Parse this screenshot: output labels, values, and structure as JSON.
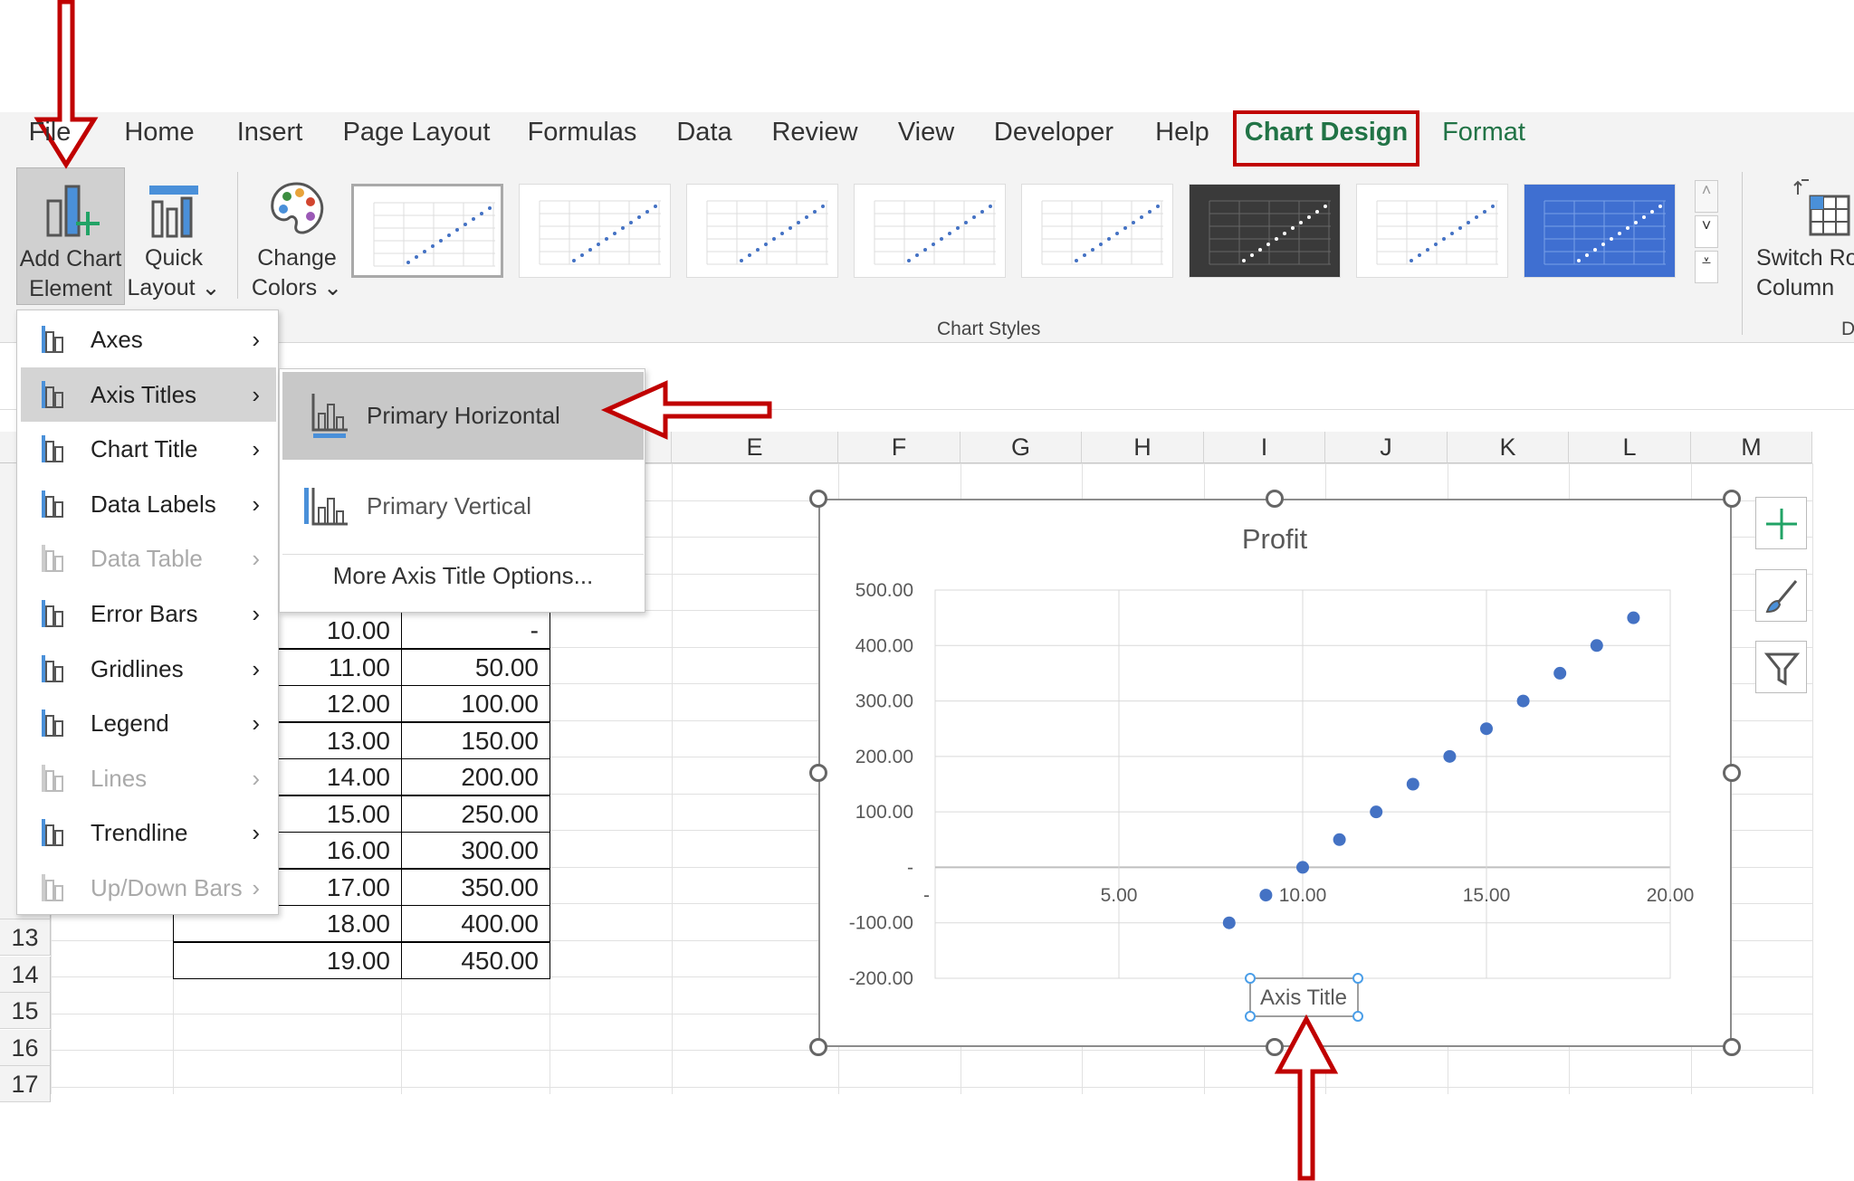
{
  "ribbon": {
    "tabs": [
      "File",
      "Home",
      "Insert",
      "Page Layout",
      "Formulas",
      "Data",
      "Review",
      "View",
      "Developer",
      "Help",
      "Chart Design",
      "Format"
    ],
    "active_tab": "Chart Design",
    "add_chart_element": {
      "line1": "Add Chart",
      "line2": "Element ⌄"
    },
    "quick_layout": {
      "line1": "Quick",
      "line2": "Layout ⌄"
    },
    "change_colors": {
      "line1": "Change",
      "line2": "Colors ⌄"
    },
    "chart_styles_label": "Chart Styles",
    "switch_row_col": {
      "line1": "Switch Ro",
      "line2": "Column"
    },
    "group_cut_label": "D"
  },
  "columns": [
    "E",
    "F",
    "G",
    "H",
    "I",
    "J",
    "K",
    "L",
    "M"
  ],
  "rows": [
    "13",
    "14",
    "15",
    "16",
    "17"
  ],
  "table": [
    [
      "10.00",
      "-"
    ],
    [
      "11.00",
      "50.00"
    ],
    [
      "12.00",
      "100.00"
    ],
    [
      "13.00",
      "150.00"
    ],
    [
      "14.00",
      "200.00"
    ],
    [
      "15.00",
      "250.00"
    ],
    [
      "16.00",
      "300.00"
    ],
    [
      "17.00",
      "350.00"
    ],
    [
      "18.00",
      "400.00"
    ],
    [
      "19.00",
      "450.00"
    ]
  ],
  "menu": {
    "items": [
      {
        "label": "Axes",
        "icon": "axes-icon",
        "enabled": true
      },
      {
        "label": "Axis Titles",
        "icon": "axis-titles-icon",
        "enabled": true,
        "highlighted": true
      },
      {
        "label": "Chart Title",
        "icon": "chart-title-icon",
        "enabled": true
      },
      {
        "label": "Data Labels",
        "icon": "data-labels-icon",
        "enabled": true
      },
      {
        "label": "Data Table",
        "icon": "data-table-icon",
        "enabled": false
      },
      {
        "label": "Error Bars",
        "icon": "error-bars-icon",
        "enabled": true
      },
      {
        "label": "Gridlines",
        "icon": "gridlines-icon",
        "enabled": true
      },
      {
        "label": "Legend",
        "icon": "legend-icon",
        "enabled": true
      },
      {
        "label": "Lines",
        "icon": "lines-icon",
        "enabled": false
      },
      {
        "label": "Trendline",
        "icon": "trendline-icon",
        "enabled": true
      },
      {
        "label": "Up/Down Bars",
        "icon": "updown-bars-icon",
        "enabled": false
      }
    ],
    "submenu": {
      "primary_horizontal": "Primary Horizontal",
      "primary_vertical": "Primary Vertical",
      "more_options": "More Axis Title Options..."
    }
  },
  "colors": {
    "accent": "#217346",
    "marker": "#4472c4",
    "annotation": "#c00000"
  },
  "chart_data": {
    "type": "scatter",
    "title": "Profit",
    "xlabel": "Axis Title",
    "ylabel": "",
    "x": [
      8,
      9,
      10,
      11,
      12,
      13,
      14,
      15,
      16,
      17,
      18,
      19
    ],
    "y": [
      -100,
      -50,
      0,
      50,
      100,
      150,
      200,
      250,
      300,
      350,
      400,
      450
    ],
    "xlim": [
      0,
      20
    ],
    "ylim": [
      -200,
      500
    ],
    "xticks": [
      "-",
      "5.00",
      "10.00",
      "15.00",
      "20.00"
    ],
    "yticks": [
      "500.00",
      "400.00",
      "300.00",
      "200.00",
      "100.00",
      "-",
      "-100.00",
      "-200.00"
    ],
    "grid": true,
    "legend": "none"
  }
}
